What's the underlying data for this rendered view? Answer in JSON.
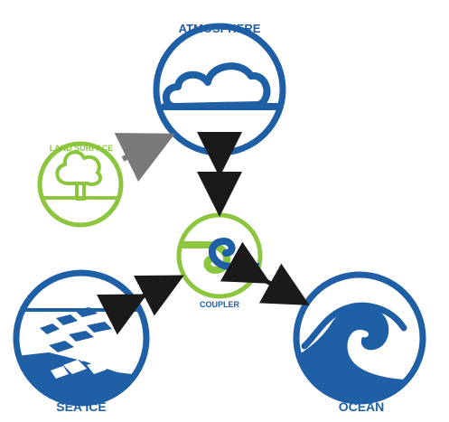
{
  "labels": {
    "atmosphere": "ATMOSPHERE",
    "land_surface": "LAND SURFACE",
    "coupler": "COUPLER",
    "sea_ice": "SEA ICE",
    "ocean": "OCEAN"
  },
  "colors": {
    "blue": "#1f5fa6",
    "green": "#8cc63f",
    "arrow_gray": "#7a7a7a",
    "arrow_black": "#1a1a1a",
    "background": "#ffffff"
  },
  "icons": {
    "atmosphere": "cloud-icon",
    "land_surface": "tree-icon",
    "coupler": "coupler-s-icon",
    "sea_ice": "ice-floes-icon",
    "ocean": "wave-icon"
  }
}
